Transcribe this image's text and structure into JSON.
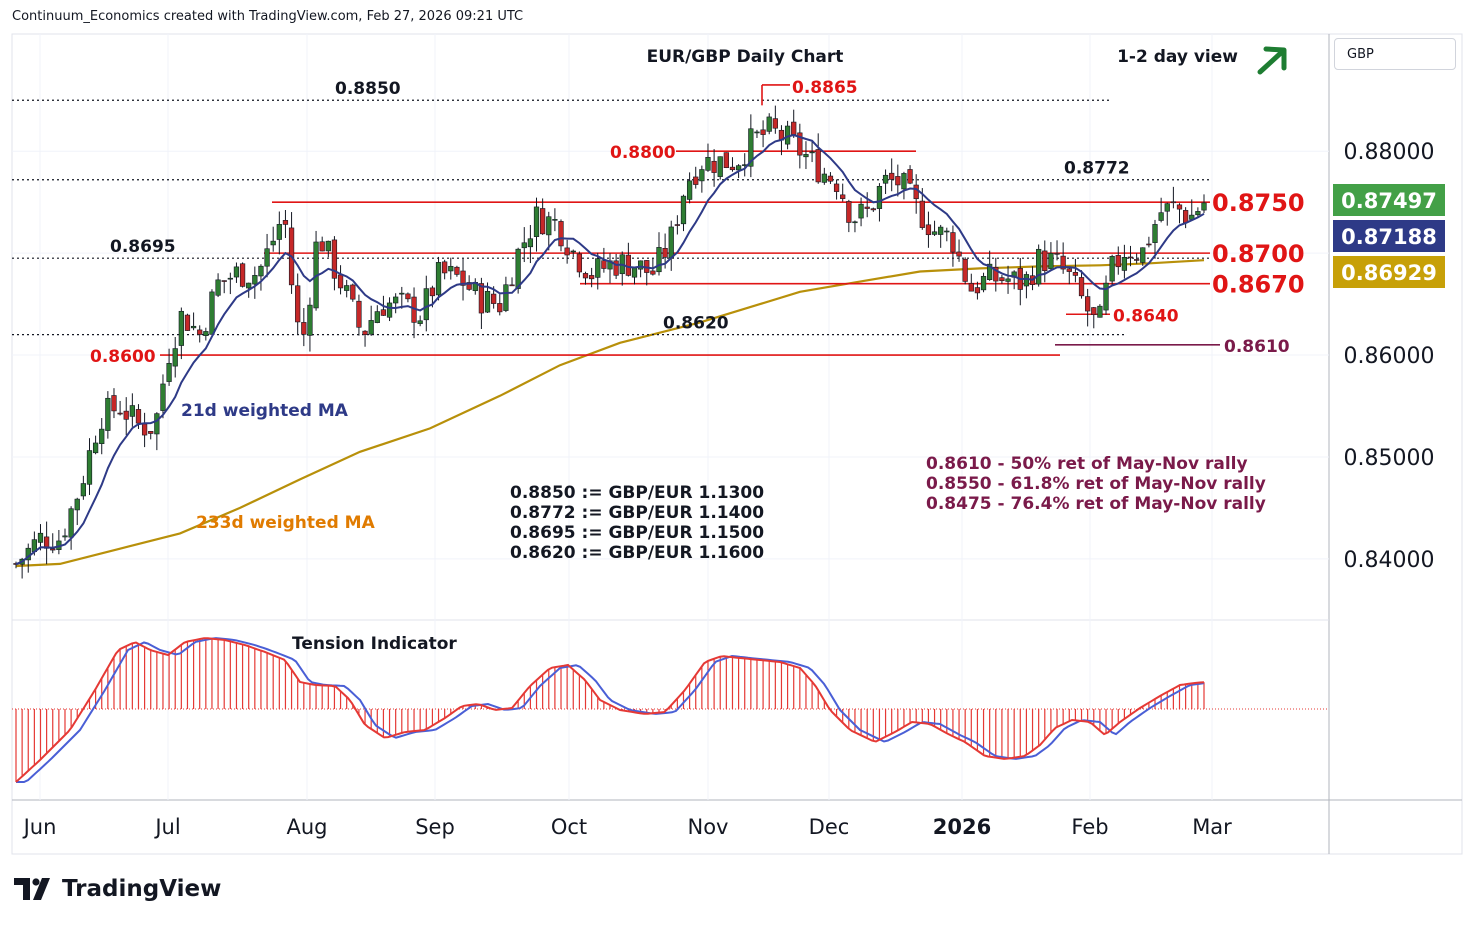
{
  "header": {
    "credit": "Continuum_Economics created with TradingView.com, Feb 27, 2026 09:21 UTC"
  },
  "currency_label": "GBP",
  "branding": {
    "name": "TradingView",
    "icon": "tradingview-logo-icon"
  },
  "view": {
    "label": "1-2 day view",
    "icon": "arrow-up-right-icon",
    "color": "#1e7d32"
  },
  "chart_data": [
    {
      "type": "candlestick",
      "title": "EUR/GBP Daily Chart",
      "x_ticks": [
        "Jun",
        "Jul",
        "Aug",
        "Sep",
        "Oct",
        "Nov",
        "Dec",
        "2026",
        "Feb",
        "Mar"
      ],
      "y_ticks": [
        "0.88000",
        "0.86000",
        "0.85000",
        "0.84000"
      ],
      "ylim": [
        0.834,
        0.8915
      ],
      "price_badges": [
        {
          "value": "0.87497",
          "bg": "#43a047",
          "fg": "#ffffff"
        },
        {
          "value": "0.87188",
          "bg": "#2e3a87",
          "fg": "#ffffff"
        },
        {
          "value": "0.86929",
          "bg": "#c7a008",
          "fg": "#ffffff"
        }
      ],
      "levels_red": [
        {
          "value": 0.8865,
          "label": "0.8865"
        },
        {
          "value": 0.88,
          "label": "0.8800"
        },
        {
          "value": 0.875,
          "label": "0.8750"
        },
        {
          "value": 0.87,
          "label": "0.8700"
        },
        {
          "value": 0.867,
          "label": "0.8670"
        },
        {
          "value": 0.864,
          "label": "0.8640"
        },
        {
          "value": 0.86,
          "label": "0.8600"
        }
      ],
      "levels_dotted": [
        {
          "value": 0.885,
          "label": "0.8850"
        },
        {
          "value": 0.8772,
          "label": "0.8772"
        },
        {
          "value": 0.8695,
          "label": "0.8695"
        },
        {
          "value": 0.862,
          "label": "0.8620"
        }
      ],
      "level_maroon": {
        "value": 0.861,
        "label": "0.8610"
      },
      "series": [
        {
          "name": "21d weighted MA",
          "color": "#2e3a87"
        },
        {
          "name": "233d weighted MA",
          "color": "#b8900a",
          "label_color": "#e07b00"
        }
      ],
      "annotations_left": [
        "0.8850 := GBP/EUR 1.1300",
        "0.8772 := GBP/EUR 1.1400",
        "0.8695 := GBP/EUR 1.1500",
        "0.8620 := GBP/EUR 1.1600"
      ],
      "annotations_right": [
        "0.8610 - 50% ret of May-Nov rally",
        "0.8550 - 61.8% ret of May-Nov rally",
        "0.8475 - 76.4% ret of May-Nov rally"
      ],
      "colors": {
        "up": "#2e7d32",
        "down": "#c62828",
        "level_red": "#e01515",
        "maroon": "#7a1a4a"
      }
    },
    {
      "type": "area",
      "title": "Tension Indicator",
      "colors": {
        "hist": "#e53935",
        "fast": "#e53935",
        "slow": "#4a5fd6"
      }
    }
  ]
}
